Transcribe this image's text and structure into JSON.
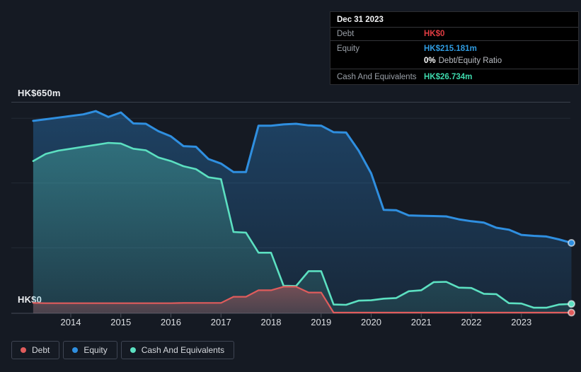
{
  "axis": {
    "y_top_label": "HK$650m",
    "y_bottom_label": "HK$0"
  },
  "tooltip": {
    "date": "Dec 31 2023",
    "debt_label": "Debt",
    "debt_value": "HK$0",
    "equity_label": "Equity",
    "equity_value": "HK$215.181m",
    "ratio_value": "0%",
    "ratio_label": "Debt/Equity Ratio",
    "cash_label": "Cash And Equivalents",
    "cash_value": "HK$26.734m",
    "debt_color": "#e03c42",
    "equity_color": "#2f9be0",
    "cash_color": "#3ed9ac"
  },
  "legend": {
    "items": [
      {
        "label": "Debt",
        "color": "#e05c5c"
      },
      {
        "label": "Equity",
        "color": "#2f8fe0"
      },
      {
        "label": "Cash And Equivalents",
        "color": "#5ce0c1"
      }
    ]
  },
  "chart_data": {
    "type": "area",
    "unit": "HK$ millions",
    "x_range": [
      2013.25,
      2024.0
    ],
    "ylim": [
      0,
      650
    ],
    "gridline_values": [
      600,
      400,
      200
    ],
    "x_ticks": [
      2014,
      2015,
      2016,
      2017,
      2018,
      2019,
      2020,
      2021,
      2022,
      2023
    ],
    "x": [
      2013.25,
      2013.5,
      2013.75,
      2014,
      2014.25,
      2014.5,
      2014.75,
      2015,
      2015.25,
      2015.5,
      2015.75,
      2016,
      2016.25,
      2016.5,
      2016.75,
      2017,
      2017.25,
      2017.5,
      2017.75,
      2018,
      2018.25,
      2018.5,
      2018.75,
      2019,
      2019.25,
      2019.5,
      2019.75,
      2020,
      2020.25,
      2020.5,
      2020.75,
      2021,
      2021.25,
      2021.5,
      2021.75,
      2022,
      2022.25,
      2022.5,
      2022.75,
      2023,
      2023.25,
      2023.5,
      2023.75,
      2024
    ],
    "series": [
      {
        "name": "Equity",
        "color": "#2f8fe0",
        "values": [
          592,
          597,
          602,
          607,
          612,
          622,
          604,
          618,
          584,
          583,
          560,
          544,
          514,
          512,
          474,
          460,
          434,
          434,
          577,
          577,
          581,
          583,
          578,
          577,
          557,
          556,
          500,
          430,
          317,
          316,
          300,
          299,
          298,
          297,
          288,
          282,
          278,
          262,
          256,
          240,
          237,
          235,
          226,
          215.181
        ]
      },
      {
        "name": "Cash And Equivalents",
        "color": "#5ce0c1",
        "values": [
          468,
          490,
          500,
          506,
          512,
          518,
          524,
          522,
          506,
          501,
          479,
          468,
          452,
          443,
          418,
          412,
          249,
          247,
          185,
          185,
          83,
          82,
          128,
          128,
          25,
          24,
          37,
          38,
          43,
          45,
          66,
          69,
          94,
          95,
          77,
          76,
          58,
          57,
          29,
          28,
          15,
          15,
          25,
          26.734
        ]
      },
      {
        "name": "Debt",
        "color": "#e05c5c",
        "values": [
          30,
          29,
          29,
          29,
          29,
          29,
          29,
          29,
          29,
          29,
          29,
          29,
          30,
          30,
          30,
          30,
          49,
          49,
          69,
          69,
          80,
          80,
          62,
          62,
          0,
          0,
          0,
          0,
          0,
          0,
          0,
          0,
          0,
          0,
          0,
          0,
          0,
          0,
          0,
          0,
          0,
          0,
          0,
          0
        ]
      }
    ]
  }
}
